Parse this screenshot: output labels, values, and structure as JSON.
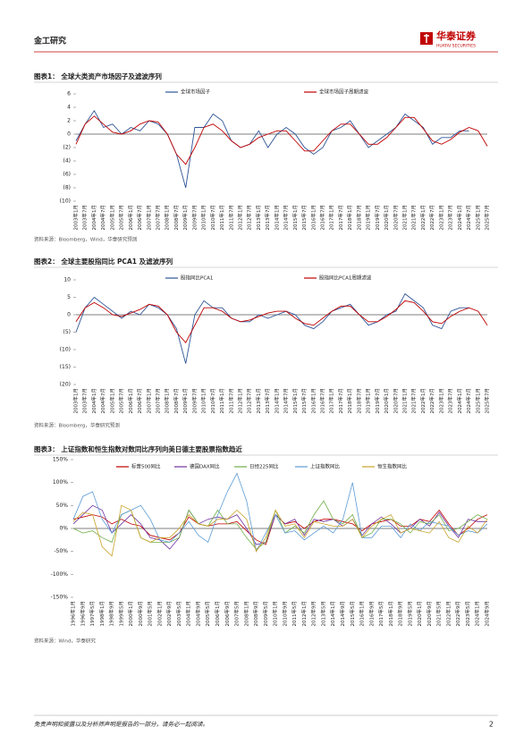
{
  "header": {
    "section": "金工研究",
    "logo": "华泰证券",
    "logo_en": "HUATAI SECURITIES"
  },
  "chart_data": [
    {
      "type": "line",
      "title": "图表1： 全球大类资产市场因子及滤波序列",
      "source": "资料来源：Bloomberg，Wind，华泰研究预测",
      "categories": [
        "2003年1月",
        "2003年7月",
        "2004年1月",
        "2004年7月",
        "2005年1月",
        "2005年7月",
        "2006年1月",
        "2006年7月",
        "2007年1月",
        "2007年7月",
        "2008年1月",
        "2008年7月",
        "2009年1月",
        "2009年7月",
        "2010年1月",
        "2010年7月",
        "2011年1月",
        "2011年7月",
        "2012年1月",
        "2012年7月",
        "2013年1月",
        "2013年7月",
        "2014年1月",
        "2014年7月",
        "2015年1月",
        "2015年7月",
        "2016年1月",
        "2016年7月",
        "2017年1月",
        "2017年7月",
        "2018年1月",
        "2018年7月",
        "2019年1月",
        "2019年7月",
        "2020年1月",
        "2020年7月",
        "2021年1月",
        "2021年7月",
        "2022年1月",
        "2022年7月",
        "2023年1月",
        "2023年7月",
        "2024年1月",
        "2024年7月",
        "2025年1月",
        "2025年7月"
      ],
      "series": [
        {
          "name": "全球市场因子",
          "color": "#2f5597",
          "values": [
            -1,
            1.5,
            3.5,
            1,
            1.5,
            0,
            1,
            0.5,
            2,
            1.5,
            0,
            -3,
            -8,
            1,
            1,
            3,
            2,
            -1,
            -2,
            -1.5,
            0.5,
            -2,
            0,
            1,
            0,
            -2,
            -3,
            -2,
            0.5,
            1,
            2,
            0,
            -2,
            -1,
            0,
            1,
            3,
            2,
            1,
            -1.5,
            -0.5,
            -0.5,
            0.5,
            0.5,
            null,
            null
          ]
        },
        {
          "name": "全球市场因子周期滤波",
          "color": "#c00000",
          "values": [
            -1.5,
            1.5,
            2.7,
            1.5,
            0.3,
            0,
            0.5,
            1.5,
            2,
            1.8,
            0,
            -3,
            -4.5,
            -2,
            1,
            1.5,
            0.5,
            -1,
            -2,
            -1.5,
            -0.5,
            0,
            0.5,
            0.5,
            -1,
            -2.5,
            -2.5,
            -1,
            0.5,
            1.5,
            1.5,
            0,
            -1.5,
            -1.5,
            -0.5,
            1,
            2.5,
            2.5,
            0.8,
            -1,
            -1.5,
            -0.8,
            0.3,
            1,
            0.5,
            -1.8
          ]
        }
      ],
      "ylim": [
        -10,
        6
      ],
      "yticks": [
        6,
        4,
        2,
        0,
        {
          "value": -2,
          "label": "(2)"
        },
        {
          "value": -4,
          "label": "(4)"
        },
        {
          "value": -6,
          "label": "(6)"
        },
        {
          "value": -8,
          "label": "(8)"
        },
        {
          "value": -10,
          "label": "(10)"
        }
      ]
    },
    {
      "type": "line",
      "title": "图表2： 全球主要股指同比 PCA1 及滤波序列",
      "source": "资料来源：Bloomberg，华泰研究预测",
      "categories": [
        "2003年1月",
        "2003年7月",
        "2004年1月",
        "2004年7月",
        "2005年1月",
        "2005年7月",
        "2006年1月",
        "2006年7月",
        "2007年1月",
        "2007年7月",
        "2008年1月",
        "2008年7月",
        "2009年1月",
        "2009年7月",
        "2010年1月",
        "2010年7月",
        "2011年1月",
        "2011年7月",
        "2012年1月",
        "2012年7月",
        "2013年1月",
        "2013年7月",
        "2014年1月",
        "2014年7月",
        "2015年1月",
        "2015年7月",
        "2016年1月",
        "2016年7月",
        "2017年1月",
        "2017年7月",
        "2018年1月",
        "2018年7月",
        "2019年1月",
        "2019年7月",
        "2020年1月",
        "2020年7月",
        "2021年1月",
        "2021年7月",
        "2022年1月",
        "2022年7月",
        "2023年1月",
        "2023年7月",
        "2024年1月",
        "2024年7月",
        "2025年1月",
        "2025年7月"
      ],
      "series": [
        {
          "name": "股指同比PCA1",
          "color": "#2f5597",
          "values": [
            -5,
            2,
            5,
            3,
            1,
            -1,
            1,
            0,
            3,
            2,
            0,
            -4,
            -14,
            0,
            4,
            2,
            2,
            -1,
            -2,
            -2,
            0,
            -1,
            0,
            1,
            0,
            -3,
            -4,
            -2,
            1,
            2,
            3,
            0,
            -3,
            -2,
            0,
            1,
            6,
            4,
            2,
            -3,
            -4,
            1,
            2,
            2,
            null,
            null
          ]
        },
        {
          "name": "股指同比PCA1周期滤波",
          "color": "#c00000",
          "values": [
            -2,
            2,
            3.5,
            2,
            0,
            -0.5,
            0.5,
            1.5,
            3,
            2.5,
            0,
            -5,
            -8,
            -3,
            2,
            2,
            1,
            -1,
            -2,
            -1.5,
            -0.5,
            0.5,
            1,
            1,
            -1,
            -2.5,
            -3,
            -1,
            1,
            2.5,
            2.5,
            0,
            -2,
            -2,
            -0.5,
            1.5,
            4,
            3.5,
            1,
            -2,
            -2.5,
            -0.5,
            1,
            2,
            1,
            -3
          ]
        }
      ],
      "ylim": [
        -20,
        10
      ],
      "yticks": [
        10,
        5,
        0,
        {
          "value": -5,
          "label": "(5)"
        },
        {
          "value": -10,
          "label": "(10)"
        },
        {
          "value": -15,
          "label": "(15)"
        },
        {
          "value": -20,
          "label": "(20)"
        }
      ]
    },
    {
      "type": "line",
      "title": "图表3： 上证指数和恒生指数对数同比序列向美日德主要股票指数趋近",
      "source": "资料来源：Wind，华泰研究",
      "categories": [
        "1996年1月",
        "1996年9月",
        "1997年5月",
        "1998年1月",
        "1998年9月",
        "1999年5月",
        "2000年1月",
        "2000年9月",
        "2001年5月",
        "2002年1月",
        "2002年9月",
        "2003年5月",
        "2004年1月",
        "2004年9月",
        "2005年5月",
        "2006年1月",
        "2006年9月",
        "2007年5月",
        "2008年1月",
        "2008年9月",
        "2009年5月",
        "2010年1月",
        "2010年9月",
        "2011年5月",
        "2012年1月",
        "2012年9月",
        "2013年5月",
        "2014年1月",
        "2014年9月",
        "2015年5月",
        "2016年1月",
        "2016年9月",
        "2017年5月",
        "2018年1月",
        "2018年9月",
        "2019年5月",
        "2020年1月",
        "2020年9月",
        "2021年5月",
        "2022年1月",
        "2022年9月",
        "2023年5月",
        "2024年1月",
        "2024年9月"
      ],
      "series": [
        {
          "name": "标普500同比",
          "color": "#c00000",
          "values": [
            20,
            25,
            30,
            25,
            10,
            20,
            10,
            5,
            -15,
            -20,
            -25,
            -10,
            25,
            10,
            5,
            10,
            10,
            15,
            -5,
            -25,
            -35,
            30,
            10,
            15,
            0,
            15,
            20,
            20,
            15,
            10,
            -5,
            10,
            15,
            20,
            5,
            5,
            20,
            15,
            40,
            10,
            -15,
            0,
            20,
            30
          ]
        },
        {
          "name": "德国DAX同比",
          "color": "#7030a0",
          "values": [
            10,
            30,
            50,
            40,
            -10,
            10,
            30,
            10,
            -20,
            -25,
            -45,
            -20,
            40,
            10,
            20,
            25,
            20,
            30,
            0,
            -35,
            -30,
            30,
            10,
            20,
            -15,
            20,
            15,
            20,
            5,
            20,
            -15,
            10,
            25,
            10,
            -10,
            0,
            20,
            5,
            35,
            5,
            -20,
            20,
            15,
            15
          ]
        },
        {
          "name": "日经225同比",
          "color": "#70ad47",
          "values": [
            0,
            -10,
            -5,
            -20,
            -30,
            30,
            40,
            -20,
            -30,
            -30,
            -30,
            -20,
            40,
            10,
            5,
            40,
            10,
            10,
            -20,
            -45,
            -30,
            40,
            -10,
            5,
            -10,
            30,
            60,
            20,
            10,
            30,
            -20,
            -10,
            20,
            20,
            10,
            -10,
            15,
            10,
            30,
            -5,
            0,
            15,
            30,
            20
          ]
        },
        {
          "name": "上证指数同比",
          "color": "#5b9bd5",
          "values": [
            20,
            70,
            80,
            20,
            -10,
            30,
            40,
            50,
            20,
            -25,
            -30,
            -10,
            15,
            -15,
            -30,
            30,
            80,
            120,
            60,
            -50,
            -10,
            30,
            -10,
            -5,
            -25,
            -10,
            5,
            -10,
            20,
            100,
            -20,
            -20,
            5,
            5,
            -20,
            10,
            -5,
            15,
            10,
            5,
            -15,
            -5,
            -10,
            10
          ]
        },
        {
          "name": "恒生指数同比",
          "color": "#c9a227",
          "values": [
            15,
            35,
            30,
            -40,
            -60,
            50,
            40,
            -20,
            -30,
            -20,
            -20,
            0,
            30,
            10,
            5,
            20,
            20,
            40,
            20,
            -50,
            -20,
            40,
            5,
            10,
            -20,
            15,
            10,
            5,
            5,
            20,
            -20,
            5,
            20,
            30,
            -10,
            0,
            -5,
            -10,
            15,
            -20,
            -30,
            5,
            -10,
            20
          ]
        }
      ],
      "ylim": [
        -150,
        150
      ],
      "yticks": [
        {
          "value": 150,
          "label": "150%"
        },
        {
          "value": 100,
          "label": "100%"
        },
        {
          "value": 50,
          "label": "50%"
        },
        {
          "value": 0,
          "label": "0%"
        },
        {
          "value": -50,
          "label": "-50%"
        },
        {
          "value": -100,
          "label": "-100%"
        },
        {
          "value": -150,
          "label": "-150%"
        }
      ]
    }
  ],
  "footer": {
    "disclaimer": "免责声明和披露以及分析师声明是报告的一部分，请务必一起阅读。",
    "page": "2"
  }
}
